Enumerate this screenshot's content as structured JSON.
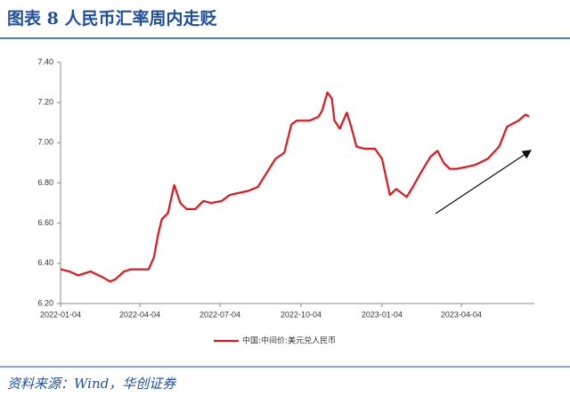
{
  "chart_data": {
    "type": "line",
    "title": "图表 8  人民币汇率周内走贬",
    "source": "资料来源：Wind，华创证券",
    "x": [
      "2022-01-04",
      "2022-01-14",
      "2022-01-24",
      "2022-02-07",
      "2022-02-21",
      "2022-03-01",
      "2022-03-07",
      "2022-03-17",
      "2022-03-25",
      "2022-04-06",
      "2022-04-14",
      "2022-04-20",
      "2022-04-25",
      "2022-04-29",
      "2022-05-06",
      "2022-05-13",
      "2022-05-20",
      "2022-05-27",
      "2022-06-06",
      "2022-06-15",
      "2022-06-24",
      "2022-07-06",
      "2022-07-15",
      "2022-07-25",
      "2022-08-05",
      "2022-08-16",
      "2022-08-26",
      "2022-09-05",
      "2022-09-15",
      "2022-09-23",
      "2022-09-29",
      "2022-10-14",
      "2022-10-24",
      "2022-10-28",
      "2022-11-03",
      "2022-11-08",
      "2022-11-11",
      "2022-11-17",
      "2022-11-25",
      "2022-11-30",
      "2022-12-06",
      "2022-12-15",
      "2022-12-27",
      "2023-01-04",
      "2023-01-13",
      "2023-01-20",
      "2023-02-01",
      "2023-02-08",
      "2023-02-17",
      "2023-02-28",
      "2023-03-08",
      "2023-03-15",
      "2023-03-22",
      "2023-03-30",
      "2023-04-10",
      "2023-04-20",
      "2023-05-04",
      "2023-05-17",
      "2023-05-26",
      "2023-06-08",
      "2023-06-16",
      "2023-06-20"
    ],
    "series": [
      {
        "name": "中国:中间价:美元兑人民币",
        "color": "#e0161d",
        "values": [
          6.37,
          6.36,
          6.34,
          6.36,
          6.33,
          6.31,
          6.32,
          6.36,
          6.37,
          6.37,
          6.37,
          6.43,
          6.55,
          6.62,
          6.65,
          6.79,
          6.7,
          6.67,
          6.67,
          6.71,
          6.7,
          6.71,
          6.74,
          6.75,
          6.76,
          6.78,
          6.85,
          6.92,
          6.95,
          7.09,
          7.11,
          7.11,
          7.13,
          7.16,
          7.25,
          7.22,
          7.11,
          7.07,
          7.15,
          7.08,
          6.98,
          6.97,
          6.97,
          6.92,
          6.74,
          6.77,
          6.73,
          6.78,
          6.85,
          6.93,
          6.96,
          6.9,
          6.87,
          6.87,
          6.88,
          6.89,
          6.92,
          6.98,
          7.08,
          7.11,
          7.14,
          7.13
        ]
      }
    ],
    "xlim": [
      "2022-01-04",
      "2023-06-26"
    ],
    "xticks": [
      "2022-01-04",
      "2022-04-04",
      "2022-07-04",
      "2022-10-04",
      "2023-01-04",
      "2023-04-04"
    ],
    "ylim": [
      6.2,
      7.4
    ],
    "yticks": [
      {
        "value": 6.2,
        "label": "6.20"
      },
      {
        "value": 6.4,
        "label": "6.40"
      },
      {
        "value": 6.6,
        "label": "6.60"
      },
      {
        "value": 6.8,
        "label": "6.80"
      },
      {
        "value": 7.0,
        "label": "7.00"
      },
      {
        "value": 7.2,
        "label": "7.20"
      },
      {
        "value": 7.4,
        "label": "7.40"
      }
    ],
    "legend": "bottom"
  }
}
